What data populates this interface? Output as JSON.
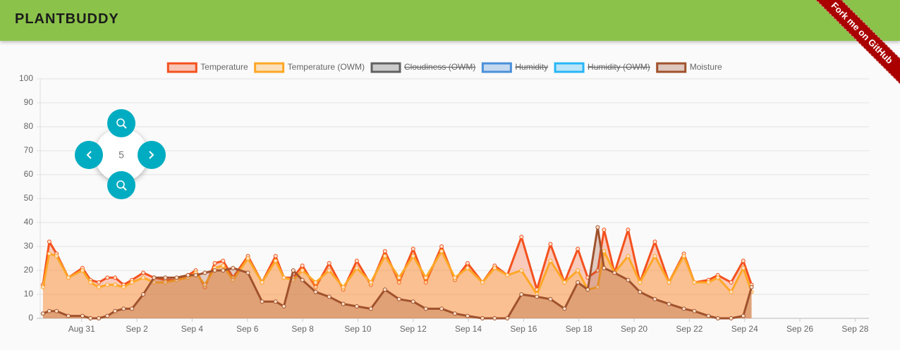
{
  "header": {
    "title": "PLANTBUDDY"
  },
  "ribbon": "Fork me on GitHub",
  "zoom": {
    "level": 5
  },
  "chart_data": {
    "type": "line",
    "x": [
      29.6,
      29.83,
      30.09,
      30.52,
      31.03,
      31.32,
      31.62,
      31.93,
      32.21,
      32.52,
      32.82,
      33.23,
      33.62,
      34.03,
      34.44,
      34.85,
      35.13,
      35.46,
      35.82,
      36.12,
      36.48,
      37.02,
      37.53,
      38.02,
      38.32,
      38.66,
      38.99,
      39.47,
      39.96,
      40.47,
      40.96,
      41.47,
      41.98,
      42.49,
      43.0,
      43.46,
      44.03,
      44.51,
      44.97,
      45.51,
      45.95,
      46.41,
      46.92,
      47.48,
      47.97,
      48.48,
      48.96,
      49.32,
      49.68,
      49.91,
      50.29,
      50.78,
      51.21,
      51.75,
      52.26,
      52.8,
      53.18,
      53.69,
      54.03,
      54.51,
      54.95,
      55.25
    ],
    "series": [
      {
        "name": "Temperature",
        "color": "#f4511e",
        "values": [
          14,
          32,
          27,
          17,
          21,
          16,
          15,
          17,
          17,
          14,
          16,
          19,
          17,
          16,
          16,
          18,
          20,
          13,
          23,
          24,
          17,
          26,
          15,
          26,
          17,
          17,
          22,
          13,
          23,
          12,
          24,
          14,
          28,
          15,
          29,
          15,
          30,
          16,
          23,
          15,
          22,
          18,
          34,
          12,
          31,
          15,
          29,
          17,
          20,
          37,
          19,
          37,
          15,
          32,
          15,
          27,
          15,
          16,
          18,
          15,
          24,
          14
        ]
      },
      {
        "name": "Temperature (OWM)",
        "color": "#ffa726",
        "values": [
          13,
          27,
          26,
          17,
          20,
          15,
          13,
          14,
          14,
          13,
          15,
          17,
          15,
          15,
          16,
          17,
          19,
          14,
          21,
          22,
          16,
          25,
          15,
          24,
          17,
          16,
          20,
          15,
          20,
          13,
          21,
          15,
          26,
          17,
          26,
          17,
          28,
          17,
          21,
          15,
          21,
          18,
          20,
          10,
          24,
          15,
          20,
          12,
          13,
          28,
          19,
          26,
          15,
          26,
          15,
          26,
          15,
          15,
          17,
          11,
          21,
          11
        ]
      },
      {
        "name": "Cloudiness (OWM)",
        "color": "#616161",
        "hidden": true
      },
      {
        "name": "Humidity",
        "color": "#4a90d9",
        "hidden": true
      },
      {
        "name": "Humidity (OWM)",
        "color": "#29b6f6",
        "hidden": true
      },
      {
        "name": "Moisture",
        "color": "#a0522d",
        "values": [
          2,
          3,
          3,
          1,
          1,
          0,
          0,
          1,
          3,
          4,
          4,
          10,
          17,
          17,
          17,
          18,
          18,
          19,
          20,
          20,
          21,
          19,
          7,
          7,
          5,
          20,
          16,
          11,
          9,
          6,
          5,
          4,
          12,
          8,
          7,
          4,
          4,
          2,
          1,
          0,
          0,
          0,
          10,
          9,
          8,
          4,
          15,
          12,
          38,
          21,
          19,
          16,
          11,
          8,
          6,
          4,
          3,
          1,
          0,
          0,
          1,
          13
        ]
      }
    ],
    "xlim": [
      29.5,
      59.5
    ],
    "xticks": [
      {
        "value": 31,
        "label": "Aug 31"
      },
      {
        "value": 33,
        "label": "Sep 2"
      },
      {
        "value": 35,
        "label": "Sep 4"
      },
      {
        "value": 37,
        "label": "Sep 6"
      },
      {
        "value": 39,
        "label": "Sep 8"
      },
      {
        "value": 41,
        "label": "Sep 10"
      },
      {
        "value": 43,
        "label": "Sep 12"
      },
      {
        "value": 45,
        "label": "Sep 14"
      },
      {
        "value": 47,
        "label": "Sep 16"
      },
      {
        "value": 49,
        "label": "Sep 18"
      },
      {
        "value": 51,
        "label": "Sep 20"
      },
      {
        "value": 53,
        "label": "Sep 22"
      },
      {
        "value": 55,
        "label": "Sep 24"
      },
      {
        "value": 57,
        "label": "Sep 26"
      },
      {
        "value": 59,
        "label": "Sep 28"
      }
    ],
    "ylim": [
      0,
      100
    ],
    "yticks": [
      0,
      10,
      20,
      30,
      40,
      50,
      60,
      70,
      80,
      90,
      100
    ],
    "grid": true,
    "legend": "top"
  }
}
